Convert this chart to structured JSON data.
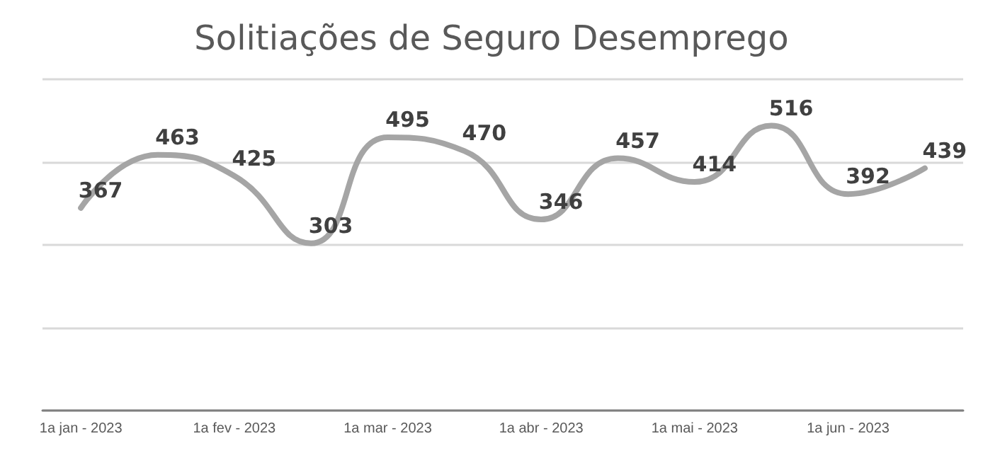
{
  "chart_data": {
    "type": "line",
    "title": "Solitiações de Seguro Desemprego",
    "categories": [
      "1a jan - 2023",
      null,
      "1a fev - 2023",
      null,
      "1a mar - 2023",
      null,
      "1a abr - 2023",
      null,
      "1a mai - 2023",
      null,
      "1a jun - 2023",
      null
    ],
    "series": [
      {
        "color": "#a5a5a5",
        "values": [
          367,
          463,
          425,
          303,
          495,
          470,
          346,
          457,
          414,
          516,
          392,
          439
        ]
      }
    ],
    "ylim": [
      0,
      600
    ],
    "yticks": [
      0,
      150,
      300,
      450,
      600
    ],
    "tick_labels": "x",
    "grid": "y",
    "data_labels": true,
    "marker": "none",
    "line_style": "solid"
  }
}
